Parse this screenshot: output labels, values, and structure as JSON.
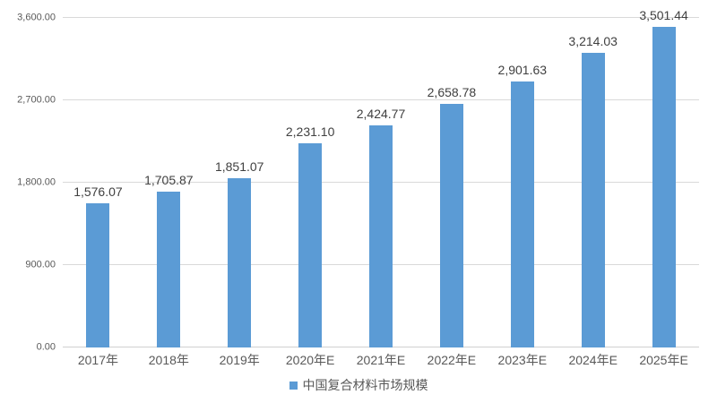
{
  "chart_data": {
    "type": "bar",
    "title": "",
    "xlabel": "",
    "ylabel": "",
    "categories": [
      "2017年",
      "2018年",
      "2019年",
      "2020年E",
      "2021年E",
      "2022年E",
      "2023年E",
      "2024年E",
      "2025年E"
    ],
    "values": [
      1576.07,
      1705.87,
      1851.07,
      2231.1,
      2424.77,
      2658.78,
      2901.63,
      3214.03,
      3501.44
    ],
    "value_labels": [
      "1,576.07",
      "1,705.87",
      "1,851.07",
      "2,231.10",
      "2,424.77",
      "2,658.78",
      "2,901.63",
      "3,214.03",
      "3,501.44"
    ],
    "ylim": [
      0,
      3600
    ],
    "ytick_values": [
      0,
      900,
      1800,
      2700,
      3600
    ],
    "ytick_labels": [
      "0.00",
      "900.00",
      "1,800.00",
      "2,700.00",
      "3,600.00"
    ],
    "grid": true,
    "legend": {
      "position": "bottom",
      "entries": [
        "中国复合材料市场规模"
      ]
    },
    "colors": {
      "bar": "#5b9bd5",
      "gridline": "#d9d9d9",
      "axis_text": "#595959",
      "data_label_text": "#404040"
    }
  }
}
